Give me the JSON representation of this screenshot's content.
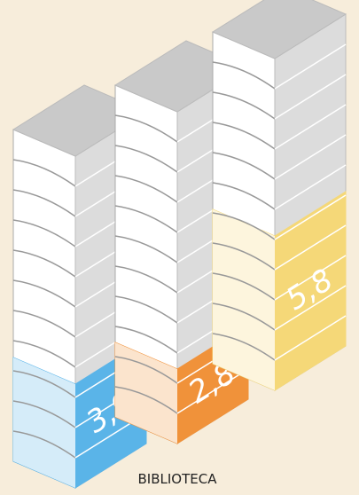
{
  "chart_data": {
    "type": "pictograph",
    "label": "BIBLIOTECA",
    "series": [
      {
        "color": "#5ab4e8",
        "values": [
          3.9
        ],
        "value_labels": [
          "3,9"
        ]
      },
      {
        "color": "#f0923a",
        "values": [
          2.8
        ],
        "value_labels": [
          "2,8"
        ]
      },
      {
        "color": "#f5d878",
        "values": [
          5.8
        ],
        "value_labels": [
          "5,8"
        ]
      }
    ]
  }
}
